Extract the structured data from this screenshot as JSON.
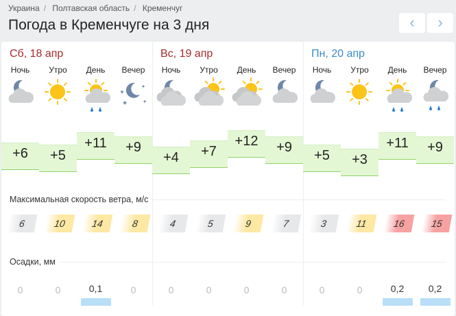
{
  "breadcrumb": [
    "Украина",
    "Полтавская область",
    "Кременчуг"
  ],
  "title": "Погода в Кременчуге на 3 дня",
  "nav": {
    "prev": "‹",
    "next": "›"
  },
  "colors": {
    "weekend": "#a52a2a",
    "weekday": "#3b8cc4",
    "wind_calm": "#e7e8ea",
    "wind_moderate": "#fde8a4",
    "wind_strong": "#f7a2a2",
    "temp_bar": "#e4f7d4",
    "precip_bar": "#b8def8"
  },
  "days": [
    {
      "label": "Сб, 18 апр",
      "weekend": true,
      "parts": [
        {
          "name": "Ночь",
          "icon": "moon-cloud",
          "temp": "+6",
          "t": 6,
          "wind": "6",
          "wl": "calm",
          "precip": "0"
        },
        {
          "name": "Утро",
          "icon": "sun",
          "temp": "+5",
          "t": 5,
          "wind": "10",
          "wl": "moderate",
          "precip": "0"
        },
        {
          "name": "День",
          "icon": "sun-cloud-rain",
          "temp": "+11",
          "t": 11,
          "wind": "14",
          "wl": "moderate",
          "precip": "0,1"
        },
        {
          "name": "Вечер",
          "icon": "moon-stars",
          "temp": "+9",
          "t": 9,
          "wind": "8",
          "wl": "moderate",
          "precip": "0"
        }
      ]
    },
    {
      "label": "Вс, 19 апр",
      "weekend": true,
      "parts": [
        {
          "name": "Ночь",
          "icon": "moon-clouds",
          "temp": "+4",
          "t": 4,
          "wind": "4",
          "wl": "calm",
          "precip": "0"
        },
        {
          "name": "Утро",
          "icon": "sun-clouds",
          "temp": "+7",
          "t": 7,
          "wind": "5",
          "wl": "calm",
          "precip": "0"
        },
        {
          "name": "День",
          "icon": "sun-clouds",
          "temp": "+12",
          "t": 12,
          "wind": "9",
          "wl": "moderate",
          "precip": "0"
        },
        {
          "name": "Вечер",
          "icon": "moon-cloud",
          "temp": "+9",
          "t": 9,
          "wind": "7",
          "wl": "calm",
          "precip": "0"
        }
      ]
    },
    {
      "label": "Пн, 20 апр",
      "weekend": false,
      "parts": [
        {
          "name": "Ночь",
          "icon": "moon-cloud",
          "temp": "+5",
          "t": 5,
          "wind": "3",
          "wl": "calm",
          "precip": "0"
        },
        {
          "name": "Утро",
          "icon": "sun",
          "temp": "+3",
          "t": 3,
          "wind": "11",
          "wl": "moderate",
          "precip": "0"
        },
        {
          "name": "День",
          "icon": "sun-cloud-rain",
          "temp": "+11",
          "t": 11,
          "wind": "16",
          "wl": "strong",
          "precip": "0,2"
        },
        {
          "name": "Вечер",
          "icon": "moon-cloud-rain",
          "temp": "+9",
          "t": 9,
          "wind": "15",
          "wl": "strong",
          "precip": "0,2"
        }
      ]
    }
  ],
  "wind_label": "Максимальная скорость ветра, м/с",
  "precip_label": "Осадки, мм"
}
